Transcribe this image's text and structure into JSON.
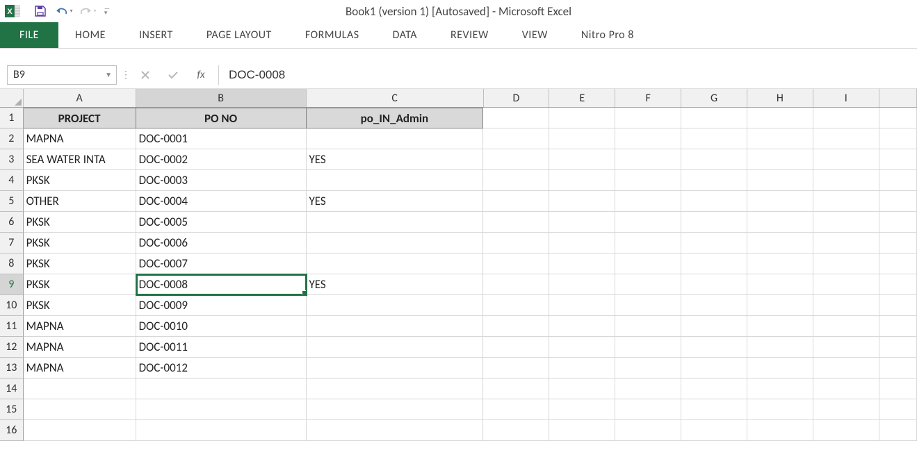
{
  "window": {
    "title": "Book1 (version 1) [Autosaved] - Microsoft Excel"
  },
  "qat": {
    "save_icon": "save",
    "undo_icon": "undo",
    "redo_icon": "redo"
  },
  "ribbon": {
    "tabs": [
      "FILE",
      "HOME",
      "INSERT",
      "PAGE LAYOUT",
      "FORMULAS",
      "DATA",
      "REVIEW",
      "VIEW",
      "Nitro Pro 8"
    ]
  },
  "formula_bar": {
    "cell_ref": "B9",
    "fx_label": "fx",
    "value": "DOC-0008"
  },
  "columns": [
    "A",
    "B",
    "C",
    "D",
    "E",
    "F",
    "G",
    "H",
    "I"
  ],
  "active_col": "B",
  "active_row": 9,
  "selected_cell": "B9",
  "grid": {
    "headers": [
      "PROJECT",
      "PO NO",
      "po_IN_Admin"
    ],
    "rows": [
      {
        "n": 1,
        "A": "PROJECT",
        "B": "PO NO",
        "C": "po_IN_Admin",
        "is_header": true
      },
      {
        "n": 2,
        "A": "MAPNA",
        "B": "DOC-0001",
        "C": ""
      },
      {
        "n": 3,
        "A": "SEA WATER INTA",
        "B": "DOC-0002",
        "C": "YES"
      },
      {
        "n": 4,
        "A": "PKSK",
        "B": "DOC-0003",
        "C": ""
      },
      {
        "n": 5,
        "A": "OTHER",
        "B": "DOC-0004",
        "C": "YES"
      },
      {
        "n": 6,
        "A": "PKSK",
        "B": "DOC-0005",
        "C": ""
      },
      {
        "n": 7,
        "A": "PKSK",
        "B": "DOC-0006",
        "C": ""
      },
      {
        "n": 8,
        "A": "PKSK",
        "B": "DOC-0007",
        "C": ""
      },
      {
        "n": 9,
        "A": "PKSK",
        "B": "DOC-0008",
        "C": "YES"
      },
      {
        "n": 10,
        "A": "PKSK",
        "B": "DOC-0009",
        "C": ""
      },
      {
        "n": 11,
        "A": "MAPNA",
        "B": "DOC-0010",
        "C": ""
      },
      {
        "n": 12,
        "A": "MAPNA",
        "B": "DOC-0011",
        "C": ""
      },
      {
        "n": 13,
        "A": "MAPNA",
        "B": "DOC-0012",
        "C": ""
      },
      {
        "n": 14,
        "A": "",
        "B": "",
        "C": ""
      },
      {
        "n": 15,
        "A": "",
        "B": "",
        "C": ""
      },
      {
        "n": 16,
        "A": "",
        "B": "",
        "C": ""
      }
    ]
  },
  "colors": {
    "accent": "#217346",
    "header_fill": "#d9d9d9",
    "gridline": "#d8d8d8",
    "chrome_bg": "#f1f1f1"
  }
}
